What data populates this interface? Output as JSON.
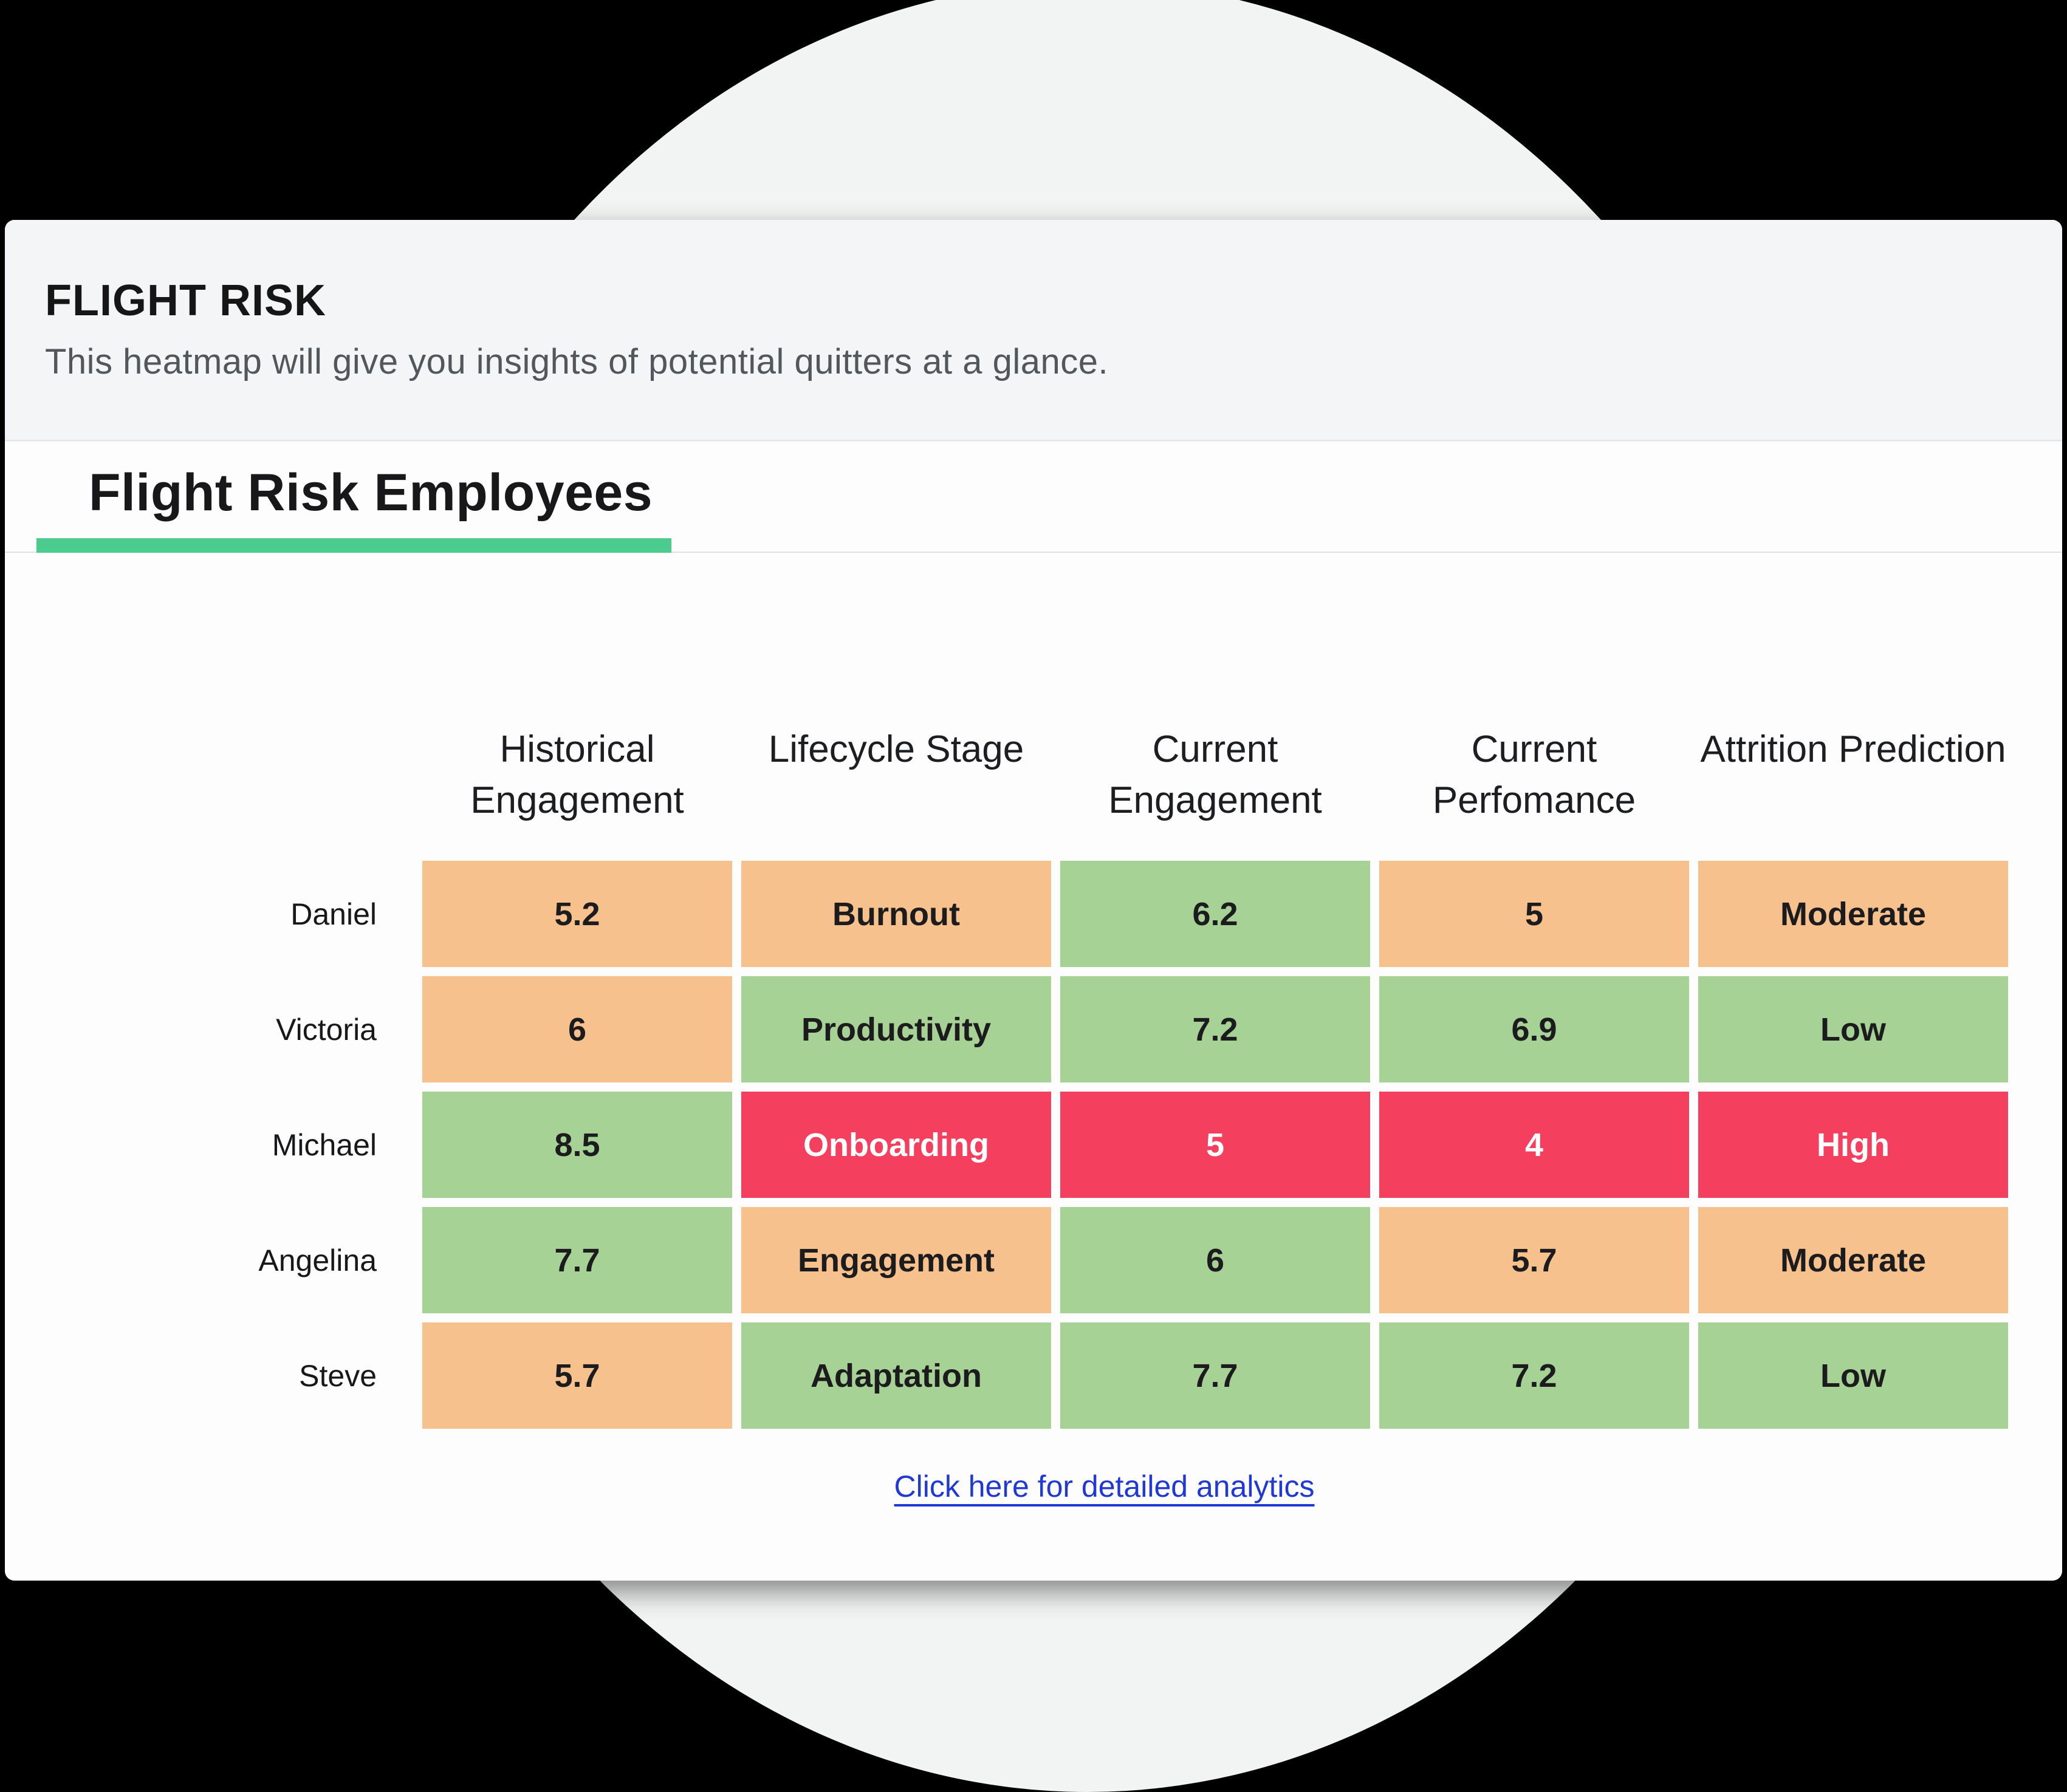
{
  "page": {
    "background_color": "#000000",
    "ellipse_color": "#f1f4f3"
  },
  "panel": {
    "header": {
      "title": "FLIGHT RISK",
      "subtitle": "This heatmap will give you insights of potential quitters at a glance."
    },
    "section": {
      "title": "Flight Risk Employees",
      "accent_color": "#4ccb8f"
    }
  },
  "link": {
    "label": "Click here for detailed analytics",
    "color": "#2139d4"
  },
  "chart_data": {
    "type": "heatmap",
    "title": "Flight Risk Employees",
    "columns": [
      "Historical Engagement",
      "Lifecycle Stage",
      "Current Engagement",
      "Current Perfomance",
      "Attrition Prediction"
    ],
    "rows": [
      "Daniel",
      "Victoria",
      "Michael",
      "Angelina",
      "Steve"
    ],
    "cells": [
      [
        "5.2",
        "Burnout",
        "6.2",
        "5",
        "Moderate"
      ],
      [
        "6",
        "Productivity",
        "7.2",
        "6.9",
        "Low"
      ],
      [
        "8.5",
        "Onboarding",
        "5",
        "4",
        "High"
      ],
      [
        "7.7",
        "Engagement",
        "6",
        "5.7",
        "Moderate"
      ],
      [
        "5.7",
        "Adaptation",
        "7.7",
        "7.2",
        "Low"
      ]
    ],
    "cell_levels": [
      [
        "mid",
        "mid",
        "good",
        "mid",
        "mid"
      ],
      [
        "mid",
        "good",
        "good",
        "good",
        "good"
      ],
      [
        "good",
        "bad",
        "bad",
        "bad",
        "bad"
      ],
      [
        "good",
        "mid",
        "good",
        "mid",
        "mid"
      ],
      [
        "mid",
        "good",
        "good",
        "good",
        "good"
      ]
    ],
    "level_colors": {
      "good": "#a7d295",
      "mid": "#f6c18d",
      "bad": "#f43f5e"
    },
    "legend_position": "none",
    "grid": false
  }
}
